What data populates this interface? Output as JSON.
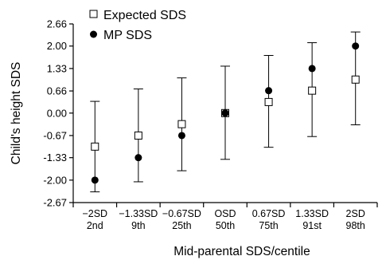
{
  "chart_data": {
    "type": "scatter",
    "title": "",
    "xlabel": "Mid-parental SDS/centile",
    "ylabel": "Child's height SDS",
    "ylim": [
      -2.67,
      2.66
    ],
    "yticks": [
      "2.66",
      "2.00",
      "1.33",
      "0.66",
      "0.00",
      "-0.67",
      "-1.33",
      "-2.00",
      "-2.67"
    ],
    "yticks_values": [
      2.66,
      2.0,
      1.33,
      0.66,
      0.0,
      -0.67,
      -1.33,
      -2.0,
      -2.67
    ],
    "categories": [
      {
        "sds": "−2SD",
        "centile": "2nd"
      },
      {
        "sds": "−1.33SD",
        "centile": "9th"
      },
      {
        "sds": "−0.67SD",
        "centile": "25th"
      },
      {
        "sds": "OSD",
        "centile": "50th"
      },
      {
        "sds": "0.67SD",
        "centile": "75th"
      },
      {
        "sds": "1.33SD",
        "centile": "91st"
      },
      {
        "sds": "2SD",
        "centile": "98th"
      }
    ],
    "series": [
      {
        "name": "Expected SDS",
        "marker": "open-square",
        "values": [
          -1.0,
          -0.67,
          -0.33,
          0.0,
          0.33,
          0.67,
          1.0
        ],
        "error_low": [
          -2.35,
          -2.05,
          -1.72,
          -1.38,
          -1.02,
          -0.7,
          -0.35
        ],
        "error_high": [
          0.35,
          0.72,
          1.05,
          1.4,
          1.72,
          2.1,
          2.42
        ]
      },
      {
        "name": "MP SDS",
        "marker": "filled-circle",
        "values": [
          -2.0,
          -1.33,
          -0.67,
          0.0,
          0.67,
          1.33,
          2.0
        ]
      }
    ],
    "legend": "top-left",
    "grid": false
  }
}
